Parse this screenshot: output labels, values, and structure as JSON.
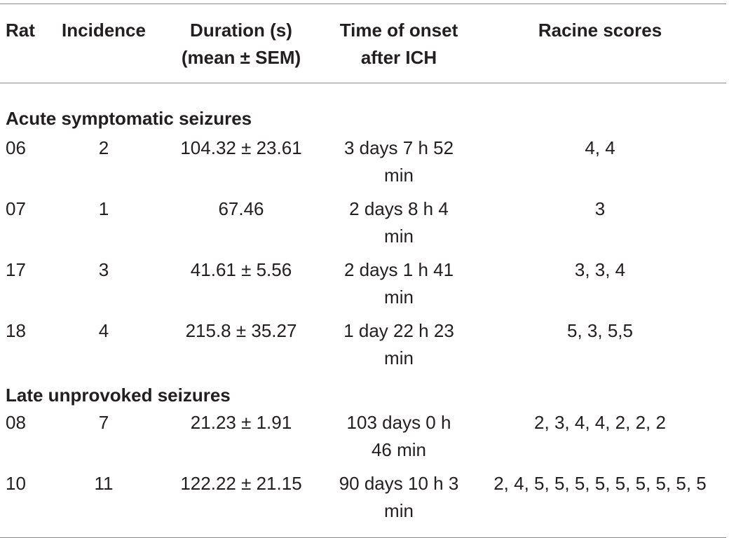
{
  "table": {
    "headers": {
      "rat": "Rat",
      "incidence": "Incidence",
      "duration_line1": "Duration (s)",
      "duration_line2": "(mean ± SEM)",
      "onset_line1": "Time of onset",
      "onset_line2": "after ICH",
      "racine": "Racine scores"
    },
    "sections": [
      {
        "title": "Acute symptomatic seizures",
        "rows": [
          {
            "rat": "06",
            "incidence": "2",
            "duration": "104.32 ± 23.61",
            "onset_line1": "3 days 7 h 52",
            "onset_line2": "min",
            "racine": "4, 4"
          },
          {
            "rat": "07",
            "incidence": "1",
            "duration": "67.46",
            "onset_line1": "2 days 8 h 4",
            "onset_line2": "min",
            "racine": "3"
          },
          {
            "rat": "17",
            "incidence": "3",
            "duration": "41.61 ± 5.56",
            "onset_line1": "2 days 1 h 41",
            "onset_line2": "min",
            "racine": "3, 3, 4"
          },
          {
            "rat": "18",
            "incidence": "4",
            "duration": "215.8 ± 35.27",
            "onset_line1": "1 day 22 h 23",
            "onset_line2": "min",
            "racine": "5, 3, 5,5"
          }
        ]
      },
      {
        "title": "Late unprovoked seizures",
        "rows": [
          {
            "rat": "08",
            "incidence": "7",
            "duration": "21.23 ± 1.91",
            "onset_line1": "103 days 0 h",
            "onset_line2": "46 min",
            "racine": "2, 3, 4, 4, 2, 2, 2"
          },
          {
            "rat": "10",
            "incidence": "11",
            "duration": "122.22 ± 21.15",
            "onset_line1": "90 days 10 h 3",
            "onset_line2": "min",
            "racine": "2, 4, 5, 5, 5, 5, 5, 5, 5, 5, 5"
          }
        ]
      }
    ]
  }
}
